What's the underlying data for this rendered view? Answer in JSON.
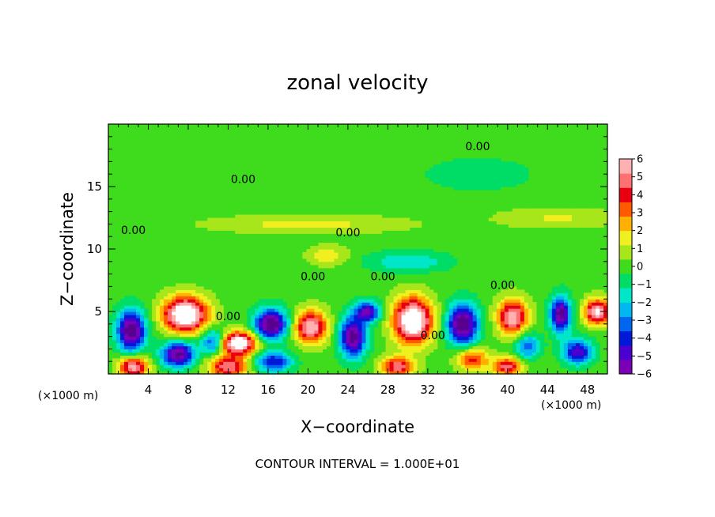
{
  "chart_data": {
    "type": "heatmap",
    "title": "zonal velocity",
    "xlabel": "X−coordinate",
    "ylabel": "Z−coordinate",
    "x_unit_left": "(×1000 m)",
    "x_unit_right": "(×1000 m)",
    "xlim": [
      0,
      50
    ],
    "ylim": [
      0,
      20
    ],
    "xticks": [
      4,
      8,
      12,
      16,
      20,
      24,
      28,
      32,
      36,
      40,
      44,
      48
    ],
    "xtick_labels": [
      "4",
      "8",
      "12",
      "16",
      "20",
      "24",
      "28",
      "32",
      "36",
      "40",
      "44",
      "48"
    ],
    "yticks": [
      5,
      10,
      15
    ],
    "ytick_labels": [
      "5",
      "10",
      "15"
    ],
    "colorbar": {
      "min": -6,
      "max": 6,
      "ticks": [
        6,
        5,
        4,
        3,
        2,
        1,
        0,
        -1,
        -2,
        -3,
        -4,
        -5,
        -6
      ],
      "tick_labels": [
        "6",
        "5",
        "4",
        "3",
        "2",
        "1",
        "0",
        "−1",
        "−2",
        "−3",
        "−4",
        "−5",
        "−6"
      ],
      "colors": [
        "#7a00b8",
        "#4b00d0",
        "#0018d8",
        "#0066f0",
        "#00b8f0",
        "#00e6c8",
        "#00dd66",
        "#3fdc1e",
        "#a6e61a",
        "#f0f020",
        "#ffb000",
        "#ff5a00",
        "#e80010",
        "#ff7070",
        "#ffb0b0"
      ]
    },
    "contour_labels": [
      {
        "text": "0.00",
        "x": 37.0,
        "y": 17.9
      },
      {
        "text": "0.00",
        "x": 13.5,
        "y": 15.3
      },
      {
        "text": "0.00",
        "x": 2.5,
        "y": 11.2
      },
      {
        "text": "0.00",
        "x": 24.0,
        "y": 11.0
      },
      {
        "text": "0.00",
        "x": 20.5,
        "y": 7.5
      },
      {
        "text": "0.00",
        "x": 27.5,
        "y": 7.5
      },
      {
        "text": "0.00",
        "x": 39.5,
        "y": 6.8
      },
      {
        "text": "0.00",
        "x": 12.0,
        "y": 4.3
      },
      {
        "text": "0.00",
        "x": 32.5,
        "y": 2.8
      }
    ],
    "anomalies": [
      {
        "x": 7.7,
        "y": 4.8,
        "amp": 8.0,
        "sx": 2.2,
        "sy": 1.4
      },
      {
        "x": 13.0,
        "y": 2.5,
        "amp": 7.5,
        "sx": 1.8,
        "sy": 0.9
      },
      {
        "x": 30.5,
        "y": 4.3,
        "amp": 8.0,
        "sx": 1.9,
        "sy": 1.8
      },
      {
        "x": 20.3,
        "y": 3.8,
        "amp": 6.0,
        "sx": 1.6,
        "sy": 1.3
      },
      {
        "x": 40.5,
        "y": 4.6,
        "amp": 6.0,
        "sx": 1.5,
        "sy": 1.4
      },
      {
        "x": 49.0,
        "y": 5.0,
        "amp": 6.5,
        "sx": 1.3,
        "sy": 1.0
      },
      {
        "x": 12.0,
        "y": 0.6,
        "amp": 5.0,
        "sx": 2.0,
        "sy": 0.9
      },
      {
        "x": 2.5,
        "y": 0.6,
        "amp": 6.0,
        "sx": 1.4,
        "sy": 0.8
      },
      {
        "x": 29.0,
        "y": 0.6,
        "amp": 5.0,
        "sx": 1.6,
        "sy": 0.8
      },
      {
        "x": 40.0,
        "y": 0.6,
        "amp": 5.0,
        "sx": 1.4,
        "sy": 0.7
      },
      {
        "x": 36.5,
        "y": 1.2,
        "amp": 4.0,
        "sx": 1.6,
        "sy": 0.9
      },
      {
        "x": 2.3,
        "y": 3.5,
        "amp": -7.0,
        "sx": 1.4,
        "sy": 1.6
      },
      {
        "x": 7.0,
        "y": 1.6,
        "amp": -6.5,
        "sx": 1.6,
        "sy": 1.0
      },
      {
        "x": 16.3,
        "y": 4.0,
        "amp": -7.0,
        "sx": 1.6,
        "sy": 1.2
      },
      {
        "x": 24.5,
        "y": 3.0,
        "amp": -6.5,
        "sx": 1.3,
        "sy": 1.6
      },
      {
        "x": 26.0,
        "y": 5.0,
        "amp": -5.5,
        "sx": 1.2,
        "sy": 0.8
      },
      {
        "x": 35.5,
        "y": 4.0,
        "amp": -7.0,
        "sx": 1.5,
        "sy": 1.6
      },
      {
        "x": 45.3,
        "y": 4.8,
        "amp": -6.5,
        "sx": 1.0,
        "sy": 1.4
      },
      {
        "x": 47.0,
        "y": 1.8,
        "amp": -5.0,
        "sx": 1.5,
        "sy": 1.0
      },
      {
        "x": 16.5,
        "y": 1.0,
        "amp": -4.5,
        "sx": 1.8,
        "sy": 0.8
      },
      {
        "x": 10.5,
        "y": 2.6,
        "amp": -4.0,
        "sx": 1.2,
        "sy": 1.0
      },
      {
        "x": 42.0,
        "y": 2.3,
        "amp": -3.5,
        "sx": 1.2,
        "sy": 1.0
      },
      {
        "x": 30.0,
        "y": 9.0,
        "amp": -2.0,
        "sx": 4.0,
        "sy": 0.8
      },
      {
        "x": 37.0,
        "y": 16.0,
        "amp": -1.2,
        "sx": 5.0,
        "sy": 1.2
      },
      {
        "x": 20.0,
        "y": 12.0,
        "amp": 1.5,
        "sx": 10.0,
        "sy": 0.7
      },
      {
        "x": 45.0,
        "y": 12.5,
        "amp": 1.3,
        "sx": 6.0,
        "sy": 0.8
      },
      {
        "x": 22.0,
        "y": 9.5,
        "amp": 1.8,
        "sx": 2.0,
        "sy": 0.8
      }
    ]
  },
  "footer": "CONTOUR INTERVAL = 1.000E+01"
}
